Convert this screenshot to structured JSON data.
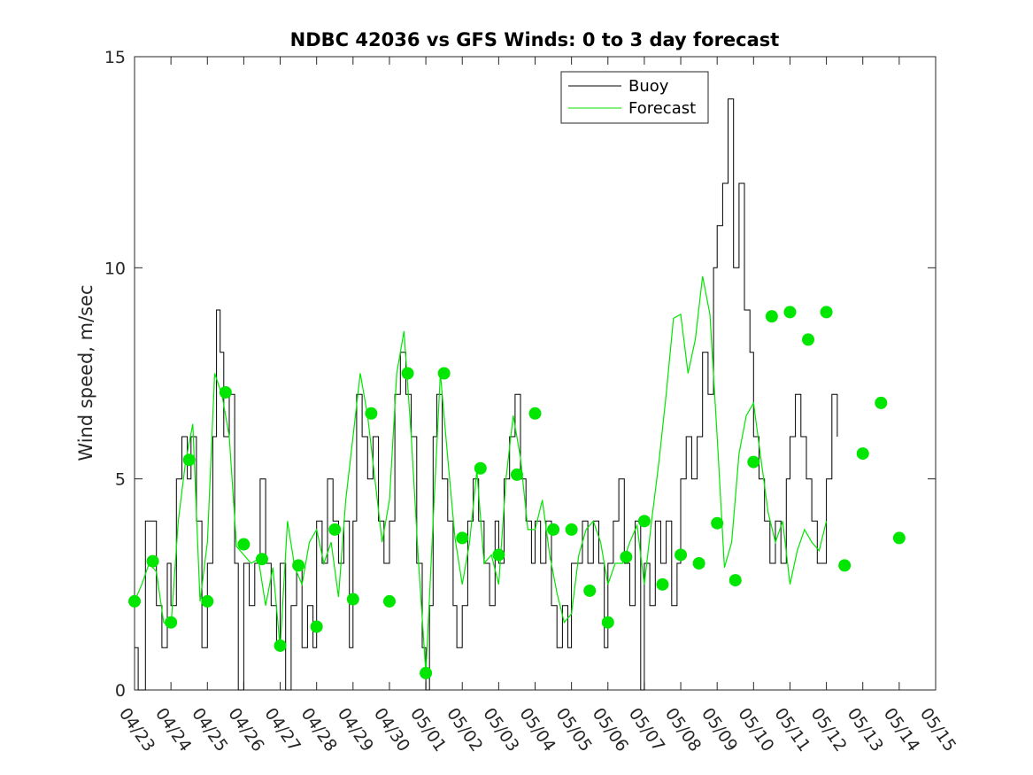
{
  "chart_data": {
    "type": "line",
    "title": "NDBC 42036 vs GFS Winds: 0 to 3 day forecast",
    "ylabel": "Wind speed, m/sec",
    "xlabel": "",
    "ylim": [
      0,
      15
    ],
    "yticks": [
      0,
      5,
      10,
      15
    ],
    "x_tick_labels": [
      "04/23",
      "04/24",
      "04/25",
      "04/26",
      "04/27",
      "04/28",
      "04/29",
      "04/30",
      "05/01",
      "05/02",
      "05/03",
      "05/04",
      "05/05",
      "05/06",
      "05/07",
      "05/08",
      "05/09",
      "05/10",
      "05/11",
      "05/12",
      "05/13",
      "05/14",
      "05/15"
    ],
    "x_day_range": [
      0,
      22
    ],
    "legend_position": "top-center",
    "colors": {
      "buoy": "#000000",
      "forecast": "#00e600",
      "marker": "#00e600"
    },
    "series": [
      {
        "name": "Buoy",
        "points": [
          [
            0,
            1.0
          ],
          [
            0.1,
            0.0
          ],
          [
            0.2,
            0.0
          ],
          [
            0.3,
            4.0
          ],
          [
            0.45,
            4.0
          ],
          [
            0.6,
            2.0
          ],
          [
            0.75,
            1.0
          ],
          [
            0.9,
            3.0
          ],
          [
            1.0,
            2.0
          ],
          [
            1.15,
            5.0
          ],
          [
            1.3,
            6.0
          ],
          [
            1.45,
            5.0
          ],
          [
            1.55,
            6.0
          ],
          [
            1.7,
            4.0
          ],
          [
            1.85,
            1.0
          ],
          [
            2.0,
            3.0
          ],
          [
            2.15,
            6.0
          ],
          [
            2.25,
            9.0
          ],
          [
            2.35,
            8.0
          ],
          [
            2.45,
            6.0
          ],
          [
            2.6,
            7.0
          ],
          [
            2.75,
            3.0
          ],
          [
            2.85,
            0.0
          ],
          [
            3.0,
            3.0
          ],
          [
            3.15,
            2.0
          ],
          [
            3.3,
            3.0
          ],
          [
            3.45,
            5.0
          ],
          [
            3.6,
            3.0
          ],
          [
            3.75,
            2.0
          ],
          [
            3.9,
            1.0
          ],
          [
            4.0,
            3.0
          ],
          [
            4.15,
            0.0
          ],
          [
            4.3,
            2.0
          ],
          [
            4.45,
            3.0
          ],
          [
            4.6,
            1.0
          ],
          [
            4.75,
            2.0
          ],
          [
            4.9,
            1.0
          ],
          [
            5.0,
            4.0
          ],
          [
            5.15,
            3.0
          ],
          [
            5.3,
            5.0
          ],
          [
            5.45,
            4.0
          ],
          [
            5.6,
            3.0
          ],
          [
            5.75,
            4.0
          ],
          [
            5.9,
            1.0
          ],
          [
            6.0,
            4.0
          ],
          [
            6.1,
            7.0
          ],
          [
            6.25,
            6.0
          ],
          [
            6.4,
            5.0
          ],
          [
            6.55,
            6.0
          ],
          [
            6.7,
            4.0
          ],
          [
            6.85,
            3.0
          ],
          [
            7.0,
            4.0
          ],
          [
            7.15,
            7.0
          ],
          [
            7.3,
            8.0
          ],
          [
            7.45,
            7.0
          ],
          [
            7.6,
            6.0
          ],
          [
            7.75,
            3.0
          ],
          [
            7.9,
            1.0
          ],
          [
            8.0,
            0.0
          ],
          [
            8.1,
            2.0
          ],
          [
            8.2,
            6.0
          ],
          [
            8.3,
            7.0
          ],
          [
            8.45,
            5.0
          ],
          [
            8.6,
            4.0
          ],
          [
            8.75,
            2.0
          ],
          [
            8.85,
            1.0
          ],
          [
            9.0,
            2.0
          ],
          [
            9.15,
            4.0
          ],
          [
            9.3,
            5.0
          ],
          [
            9.45,
            4.0
          ],
          [
            9.6,
            3.0
          ],
          [
            9.75,
            2.0
          ],
          [
            9.9,
            4.0
          ],
          [
            10.0,
            3.0
          ],
          [
            10.15,
            5.0
          ],
          [
            10.3,
            6.0
          ],
          [
            10.45,
            7.0
          ],
          [
            10.6,
            5.0
          ],
          [
            10.75,
            4.0
          ],
          [
            10.9,
            3.0
          ],
          [
            11.0,
            4.0
          ],
          [
            11.15,
            3.0
          ],
          [
            11.3,
            4.0
          ],
          [
            11.45,
            2.0
          ],
          [
            11.6,
            1.0
          ],
          [
            11.75,
            2.0
          ],
          [
            11.9,
            1.0
          ],
          [
            12.0,
            3.0
          ],
          [
            12.15,
            3.0
          ],
          [
            12.3,
            4.0
          ],
          [
            12.45,
            3.0
          ],
          [
            12.6,
            4.0
          ],
          [
            12.75,
            3.0
          ],
          [
            12.9,
            1.0
          ],
          [
            13.0,
            3.0
          ],
          [
            13.15,
            4.0
          ],
          [
            13.3,
            5.0
          ],
          [
            13.45,
            3.0
          ],
          [
            13.6,
            2.0
          ],
          [
            13.75,
            4.0
          ],
          [
            13.9,
            0.0
          ],
          [
            14.0,
            3.0
          ],
          [
            14.15,
            2.0
          ],
          [
            14.3,
            4.0
          ],
          [
            14.45,
            3.0
          ],
          [
            14.6,
            4.0
          ],
          [
            14.75,
            2.0
          ],
          [
            14.9,
            3.0
          ],
          [
            15.0,
            5.0
          ],
          [
            15.15,
            6.0
          ],
          [
            15.3,
            5.0
          ],
          [
            15.45,
            6.0
          ],
          [
            15.6,
            8.0
          ],
          [
            15.75,
            7.0
          ],
          [
            15.9,
            10.0
          ],
          [
            16.0,
            11.0
          ],
          [
            16.15,
            12.0
          ],
          [
            16.3,
            14.0
          ],
          [
            16.45,
            10.0
          ],
          [
            16.6,
            12.0
          ],
          [
            16.75,
            9.0
          ],
          [
            16.9,
            8.0
          ],
          [
            17.0,
            6.0
          ],
          [
            17.15,
            5.0
          ],
          [
            17.3,
            4.0
          ],
          [
            17.45,
            3.0
          ],
          [
            17.6,
            4.0
          ],
          [
            17.75,
            3.0
          ],
          [
            17.9,
            5.0
          ],
          [
            18.0,
            6.0
          ],
          [
            18.15,
            7.0
          ],
          [
            18.3,
            6.0
          ],
          [
            18.45,
            5.0
          ],
          [
            18.6,
            4.0
          ],
          [
            18.75,
            3.0
          ],
          [
            18.9,
            3.0
          ],
          [
            19.0,
            5.0
          ],
          [
            19.15,
            7.0
          ],
          [
            19.3,
            6.0
          ]
        ]
      },
      {
        "name": "Forecast",
        "points": [
          [
            0,
            2.1
          ],
          [
            0.2,
            2.5
          ],
          [
            0.4,
            3.0
          ],
          [
            0.6,
            2.8
          ],
          [
            0.8,
            1.6
          ],
          [
            1.0,
            1.5
          ],
          [
            1.2,
            4.0
          ],
          [
            1.4,
            5.4
          ],
          [
            1.6,
            6.3
          ],
          [
            1.8,
            2.1
          ],
          [
            2.0,
            3.5
          ],
          [
            2.2,
            7.5
          ],
          [
            2.4,
            7.0
          ],
          [
            2.6,
            6.0
          ],
          [
            2.8,
            3.4
          ],
          [
            3.0,
            3.2
          ],
          [
            3.2,
            3.0
          ],
          [
            3.4,
            3.1
          ],
          [
            3.6,
            2.0
          ],
          [
            3.8,
            2.9
          ],
          [
            4.0,
            1.0
          ],
          [
            4.2,
            4.0
          ],
          [
            4.4,
            2.9
          ],
          [
            4.6,
            2.5
          ],
          [
            4.8,
            3.5
          ],
          [
            5.0,
            3.8
          ],
          [
            5.2,
            3.0
          ],
          [
            5.4,
            3.5
          ],
          [
            5.6,
            2.2
          ],
          [
            5.8,
            4.5
          ],
          [
            6.0,
            6.0
          ],
          [
            6.2,
            7.5
          ],
          [
            6.4,
            6.5
          ],
          [
            6.6,
            5.0
          ],
          [
            6.8,
            3.5
          ],
          [
            7.0,
            4.5
          ],
          [
            7.2,
            7.5
          ],
          [
            7.4,
            8.5
          ],
          [
            7.6,
            6.0
          ],
          [
            7.8,
            3.0
          ],
          [
            8.0,
            0.4
          ],
          [
            8.2,
            4.0
          ],
          [
            8.4,
            7.5
          ],
          [
            8.6,
            5.5
          ],
          [
            8.8,
            3.6
          ],
          [
            9.0,
            2.5
          ],
          [
            9.2,
            3.5
          ],
          [
            9.4,
            5.2
          ],
          [
            9.6,
            3.0
          ],
          [
            9.8,
            3.2
          ],
          [
            10.0,
            2.5
          ],
          [
            10.2,
            5.0
          ],
          [
            10.4,
            6.5
          ],
          [
            10.6,
            5.5
          ],
          [
            10.8,
            3.8
          ],
          [
            11.0,
            3.8
          ],
          [
            11.2,
            4.5
          ],
          [
            11.4,
            3.2
          ],
          [
            11.6,
            2.3
          ],
          [
            11.8,
            1.6
          ],
          [
            12.0,
            1.8
          ],
          [
            12.2,
            3.2
          ],
          [
            12.4,
            3.8
          ],
          [
            12.6,
            4.0
          ],
          [
            12.8,
            3.5
          ],
          [
            13.0,
            2.5
          ],
          [
            13.2,
            3.0
          ],
          [
            13.4,
            3.0
          ],
          [
            13.6,
            3.5
          ],
          [
            13.8,
            3.9
          ],
          [
            14.0,
            2.5
          ],
          [
            14.2,
            4.0
          ],
          [
            14.4,
            5.4
          ],
          [
            14.6,
            7.0
          ],
          [
            14.8,
            8.8
          ],
          [
            15.0,
            8.9
          ],
          [
            15.2,
            7.5
          ],
          [
            15.4,
            8.3
          ],
          [
            15.6,
            9.8
          ],
          [
            15.8,
            8.9
          ],
          [
            16.0,
            6.0
          ],
          [
            16.2,
            2.9
          ],
          [
            16.4,
            3.5
          ],
          [
            16.6,
            5.6
          ],
          [
            16.8,
            6.5
          ],
          [
            17.0,
            6.8
          ],
          [
            17.2,
            5.5
          ],
          [
            17.4,
            4.2
          ],
          [
            17.6,
            3.5
          ],
          [
            17.8,
            4.0
          ],
          [
            18.0,
            2.5
          ],
          [
            18.2,
            3.3
          ],
          [
            18.4,
            3.8
          ],
          [
            18.6,
            3.5
          ],
          [
            18.8,
            3.3
          ],
          [
            19.0,
            4.0
          ]
        ]
      }
    ],
    "markers": [
      [
        0,
        2.1
      ],
      [
        0.5,
        3.05
      ],
      [
        1.0,
        1.6
      ],
      [
        1.5,
        5.45
      ],
      [
        2.0,
        2.1
      ],
      [
        2.5,
        7.05
      ],
      [
        3.0,
        3.45
      ],
      [
        3.5,
        3.1
      ],
      [
        4.0,
        1.05
      ],
      [
        4.5,
        2.95
      ],
      [
        5.0,
        1.5
      ],
      [
        5.5,
        3.8
      ],
      [
        6.0,
        2.15
      ],
      [
        6.5,
        6.55
      ],
      [
        7.0,
        2.1
      ],
      [
        7.5,
        7.5
      ],
      [
        8.0,
        0.4
      ],
      [
        8.5,
        7.5
      ],
      [
        9.0,
        3.6
      ],
      [
        9.5,
        5.25
      ],
      [
        10.0,
        3.2
      ],
      [
        10.5,
        5.1
      ],
      [
        11.0,
        6.55
      ],
      [
        11.5,
        3.8
      ],
      [
        12.0,
        3.8
      ],
      [
        12.5,
        2.35
      ],
      [
        13.0,
        1.6
      ],
      [
        13.5,
        3.15
      ],
      [
        14.0,
        4.0
      ],
      [
        14.5,
        2.5
      ],
      [
        15.0,
        3.2
      ],
      [
        15.5,
        3.0
      ],
      [
        16.0,
        3.95
      ],
      [
        16.5,
        2.6
      ],
      [
        17.0,
        5.4
      ],
      [
        17.5,
        8.85
      ],
      [
        18.0,
        8.95
      ],
      [
        18.5,
        8.3
      ],
      [
        19.0,
        8.95
      ],
      [
        19.5,
        2.95
      ],
      [
        20.0,
        5.6
      ],
      [
        20.5,
        6.8
      ],
      [
        21.0,
        3.6
      ]
    ]
  }
}
